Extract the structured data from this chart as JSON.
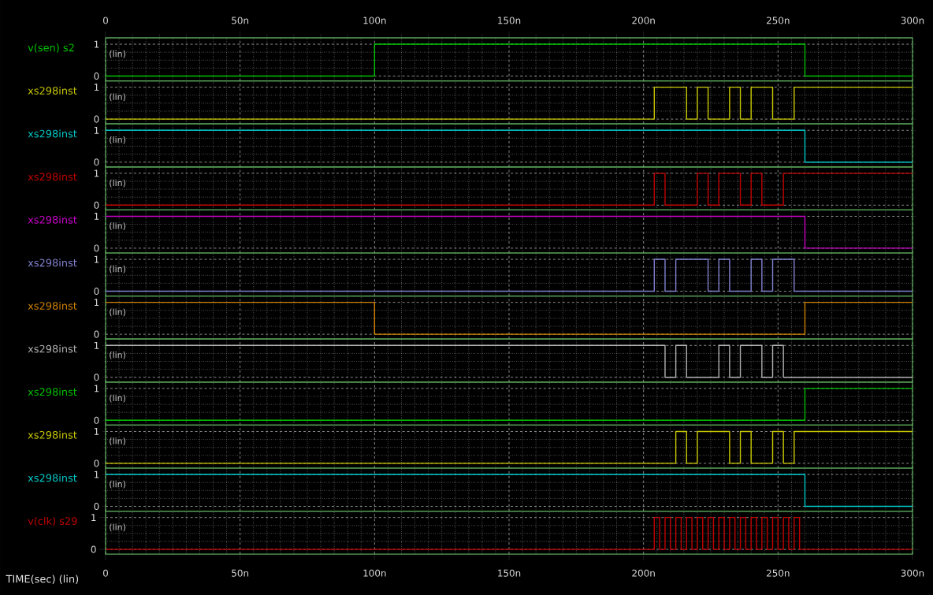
{
  "chart_data": [
    {
      "type": "step",
      "ylabel": "v(sen) s2",
      "annotations": [
        "(lin)"
      ],
      "xlim": [
        0,
        300
      ],
      "xticks": [
        0,
        50,
        100,
        150,
        200,
        250,
        300
      ],
      "x2lim": [
        0,
        300
      ],
      "x2ticks": [
        0,
        {
          "value": 50,
          "label": "50n"
        },
        {
          "value": 100,
          "label": "100n"
        },
        {
          "value": 150,
          "label": "150n"
        },
        {
          "value": 200,
          "label": "200n"
        },
        {
          "value": 250,
          "label": "250n"
        },
        {
          "value": 300,
          "label": "300n"
        }
      ],
      "ylim": [
        -0.15,
        1.2
      ],
      "yticks": [
        0,
        1
      ],
      "grid": true,
      "tick_labels": "y",
      "series": [
        {
          "color": "#00c000",
          "x": [
            0,
            100,
            260,
            300
          ],
          "values": [
            0,
            1,
            0,
            0
          ]
        }
      ]
    },
    {
      "type": "step",
      "ylabel": "xs298inst",
      "annotations": [
        "(lin)"
      ],
      "xlim": [
        0,
        300
      ],
      "xticks": [
        0,
        50,
        100,
        150,
        200,
        250,
        300
      ],
      "ylim": [
        -0.15,
        1.2
      ],
      "yticks": [
        0,
        1
      ],
      "grid": true,
      "tick_labels": "y",
      "series": [
        {
          "color": "#c8c800",
          "x": [
            0,
            204,
            216,
            220,
            224,
            232,
            236,
            240,
            248,
            256,
            300
          ],
          "values": [
            0,
            1,
            0,
            1,
            0,
            1,
            0,
            1,
            0,
            1,
            1
          ]
        }
      ]
    },
    {
      "type": "step",
      "ylabel": "xs298inst",
      "annotations": [
        "(lin)"
      ],
      "xlim": [
        0,
        300
      ],
      "xticks": [
        0,
        50,
        100,
        150,
        200,
        250,
        300
      ],
      "ylim": [
        -0.15,
        1.2
      ],
      "yticks": [
        0,
        1
      ],
      "grid": true,
      "tick_labels": "y",
      "series": [
        {
          "color": "#00c8c8",
          "x": [
            0,
            260,
            300
          ],
          "values": [
            1,
            0,
            0
          ]
        }
      ]
    },
    {
      "type": "step",
      "ylabel": "xs298inst",
      "annotations": [
        "(lin)"
      ],
      "xlim": [
        0,
        300
      ],
      "xticks": [
        0,
        50,
        100,
        150,
        200,
        250,
        300
      ],
      "ylim": [
        -0.15,
        1.2
      ],
      "yticks": [
        0,
        1
      ],
      "grid": true,
      "tick_labels": "y",
      "series": [
        {
          "color": "#c00000",
          "x": [
            0,
            204,
            208,
            220,
            224,
            228,
            236,
            240,
            244,
            252,
            300
          ],
          "values": [
            0,
            1,
            0,
            1,
            0,
            1,
            0,
            1,
            0,
            1,
            1
          ]
        }
      ]
    },
    {
      "type": "step",
      "ylabel": "xs298inst",
      "annotations": [
        "(lin)"
      ],
      "xlim": [
        0,
        300
      ],
      "xticks": [
        0,
        50,
        100,
        150,
        200,
        250,
        300
      ],
      "ylim": [
        -0.15,
        1.2
      ],
      "yticks": [
        0,
        1
      ],
      "grid": true,
      "tick_labels": "y",
      "series": [
        {
          "color": "#c800c8",
          "x": [
            0,
            260,
            300
          ],
          "values": [
            1,
            0,
            0
          ]
        }
      ]
    },
    {
      "type": "step",
      "ylabel": "xs298inst",
      "annotations": [
        "(lin)"
      ],
      "xlim": [
        0,
        300
      ],
      "xticks": [
        0,
        50,
        100,
        150,
        200,
        250,
        300
      ],
      "ylim": [
        -0.15,
        1.2
      ],
      "yticks": [
        0,
        1
      ],
      "grid": true,
      "tick_labels": "y",
      "series": [
        {
          "color": "#8080d0",
          "x": [
            0,
            204,
            208,
            212,
            224,
            228,
            232,
            240,
            244,
            248,
            256,
            300
          ],
          "values": [
            0,
            1,
            0,
            1,
            0,
            1,
            0,
            1,
            0,
            1,
            0,
            0
          ]
        }
      ]
    },
    {
      "type": "step",
      "ylabel": "xs298inst",
      "annotations": [
        "(lin)"
      ],
      "xlim": [
        0,
        300
      ],
      "xticks": [
        0,
        50,
        100,
        150,
        200,
        250,
        300
      ],
      "ylim": [
        -0.15,
        1.2
      ],
      "yticks": [
        0,
        1
      ],
      "grid": true,
      "tick_labels": "y",
      "series": [
        {
          "color": "#d08000",
          "x": [
            0,
            100,
            260,
            300
          ],
          "values": [
            1,
            0,
            1,
            1
          ]
        }
      ]
    },
    {
      "type": "step",
      "ylabel": "xs298inst",
      "annotations": [
        "(lin)"
      ],
      "xlim": [
        0,
        300
      ],
      "xticks": [
        0,
        50,
        100,
        150,
        200,
        250,
        300
      ],
      "ylim": [
        -0.15,
        1.2
      ],
      "yticks": [
        0,
        1
      ],
      "grid": true,
      "tick_labels": "y",
      "series": [
        {
          "color": "#b0b0b0",
          "x": [
            0,
            208,
            212,
            216,
            228,
            232,
            236,
            244,
            248,
            252,
            300
          ],
          "values": [
            1,
            0,
            1,
            0,
            1,
            0,
            1,
            0,
            1,
            0,
            0
          ]
        }
      ]
    },
    {
      "type": "step",
      "ylabel": "xs298inst",
      "annotations": [
        "(lin)"
      ],
      "xlim": [
        0,
        300
      ],
      "xticks": [
        0,
        50,
        100,
        150,
        200,
        250,
        300
      ],
      "ylim": [
        -0.15,
        1.2
      ],
      "yticks": [
        0,
        1
      ],
      "grid": true,
      "tick_labels": "y",
      "series": [
        {
          "color": "#00c000",
          "x": [
            0,
            260,
            300
          ],
          "values": [
            0,
            1,
            1
          ]
        }
      ]
    },
    {
      "type": "step",
      "ylabel": "xs298inst",
      "annotations": [
        "(lin)"
      ],
      "xlim": [
        0,
        300
      ],
      "xticks": [
        0,
        50,
        100,
        150,
        200,
        250,
        300
      ],
      "ylim": [
        -0.15,
        1.2
      ],
      "yticks": [
        0,
        1
      ],
      "grid": true,
      "tick_labels": "y",
      "series": [
        {
          "color": "#c8c800",
          "x": [
            0,
            212,
            216,
            220,
            232,
            236,
            240,
            248,
            252,
            256,
            300
          ],
          "values": [
            0,
            1,
            0,
            1,
            0,
            1,
            0,
            1,
            0,
            1,
            1
          ]
        }
      ]
    },
    {
      "type": "step",
      "ylabel": "xs298inst",
      "annotations": [
        "(lin)"
      ],
      "xlim": [
        0,
        300
      ],
      "xticks": [
        0,
        50,
        100,
        150,
        200,
        250,
        300
      ],
      "ylim": [
        -0.15,
        1.2
      ],
      "yticks": [
        0,
        1
      ],
      "grid": true,
      "tick_labels": "y",
      "series": [
        {
          "color": "#00c8c8",
          "x": [
            0,
            260,
            300
          ],
          "values": [
            1,
            0,
            0
          ]
        }
      ]
    },
    {
      "type": "step",
      "ylabel": "v(clk) s29",
      "xlabel": "TIME(sec) (lin)",
      "annotations": [
        "(lin)"
      ],
      "xlim": [
        0,
        300
      ],
      "xticks": [
        0,
        {
          "value": 50,
          "label": "50n"
        },
        {
          "value": 100,
          "label": "100n"
        },
        {
          "value": 150,
          "label": "150n"
        },
        {
          "value": 200,
          "label": "200n"
        },
        {
          "value": 250,
          "label": "250n"
        },
        {
          "value": 300,
          "label": "300n"
        }
      ],
      "ylim": [
        -0.15,
        1.2
      ],
      "yticks": [
        0,
        1
      ],
      "grid": true,
      "series": [
        {
          "color": "#c00000",
          "x": [
            0,
            204,
            206,
            208,
            210,
            212,
            214,
            216,
            218,
            220,
            222,
            224,
            226,
            228,
            230,
            232,
            234,
            236,
            238,
            240,
            242,
            244,
            246,
            248,
            250,
            252,
            254,
            256,
            258,
            300
          ],
          "values": [
            0,
            1,
            0,
            1,
            0,
            1,
            0,
            1,
            0,
            1,
            0,
            1,
            0,
            1,
            0,
            1,
            0,
            1,
            0,
            1,
            0,
            1,
            0,
            1,
            0,
            1,
            0,
            1,
            0,
            0
          ]
        }
      ]
    }
  ]
}
